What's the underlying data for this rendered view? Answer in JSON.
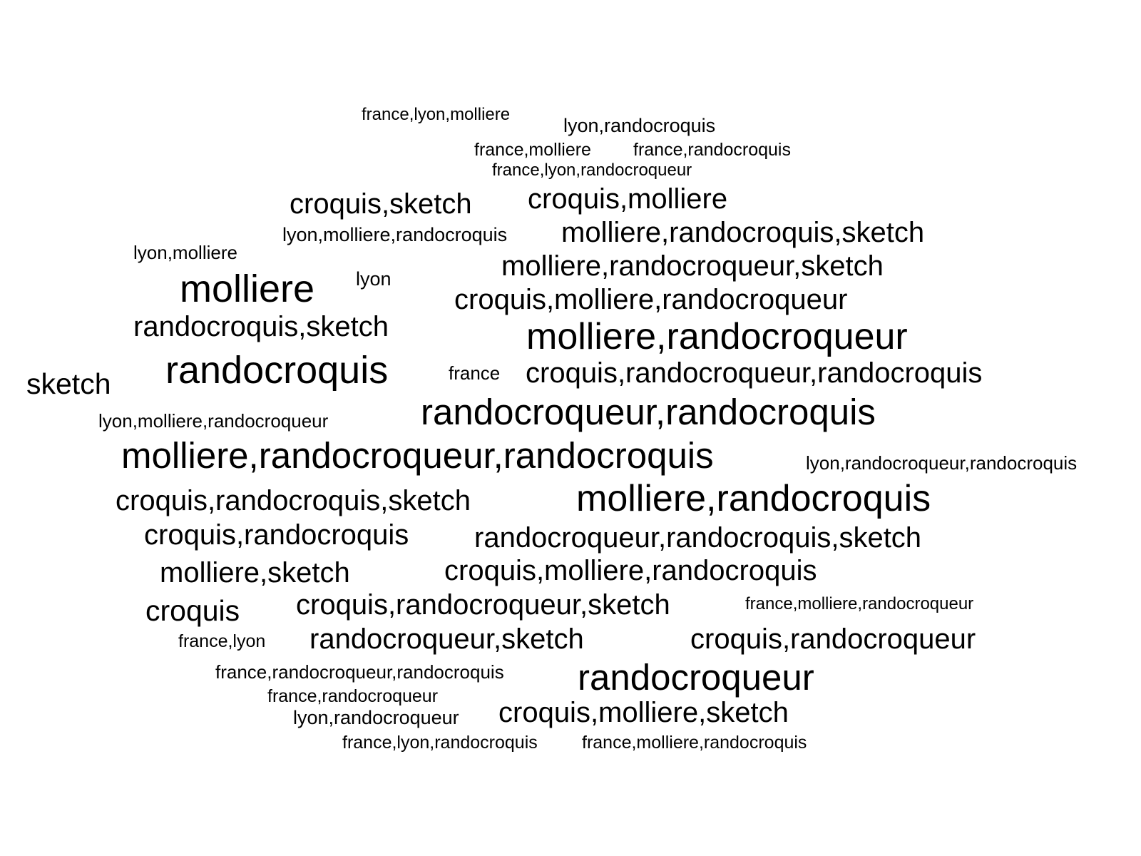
{
  "text_color": "#000000",
  "background": "#ffffff",
  "words": [
    "france,lyon,molliere",
    "lyon,randocroquis",
    "france,molliere",
    "france,randocroquis",
    "france,lyon,randocroqueur",
    "croquis,sketch",
    "croquis,molliere",
    "lyon,molliere,randocroquis",
    "molliere,randocroquis,sketch",
    "lyon,molliere",
    "molliere,randocroqueur,sketch",
    "molliere",
    "lyon",
    "croquis,molliere,randocroqueur",
    "randocroquis,sketch",
    "molliere,randocroqueur",
    "randocroquis",
    "france",
    "croquis,randocroqueur,randocroquis",
    "sketch",
    "randocroqueur,randocroquis",
    "lyon,molliere,randocroqueur",
    "molliere,randocroqueur,randocroquis",
    "lyon,randocroqueur,randocroquis",
    "croquis,randocroquis,sketch",
    "molliere,randocroquis",
    "croquis,randocroquis",
    "randocroqueur,randocroquis,sketch",
    "molliere,sketch",
    "croquis,molliere,randocroquis",
    "croquis",
    "croquis,randocroqueur,sketch",
    "france,molliere,randocroqueur",
    "france,lyon",
    "randocroqueur,sketch",
    "croquis,randocroqueur",
    "france,randocroqueur,randocroquis",
    "randocroqueur",
    "france,randocroqueur",
    "lyon,randocroqueur",
    "croquis,molliere,sketch",
    "france,lyon,randocroquis",
    "france,molliere,randocroquis"
  ]
}
